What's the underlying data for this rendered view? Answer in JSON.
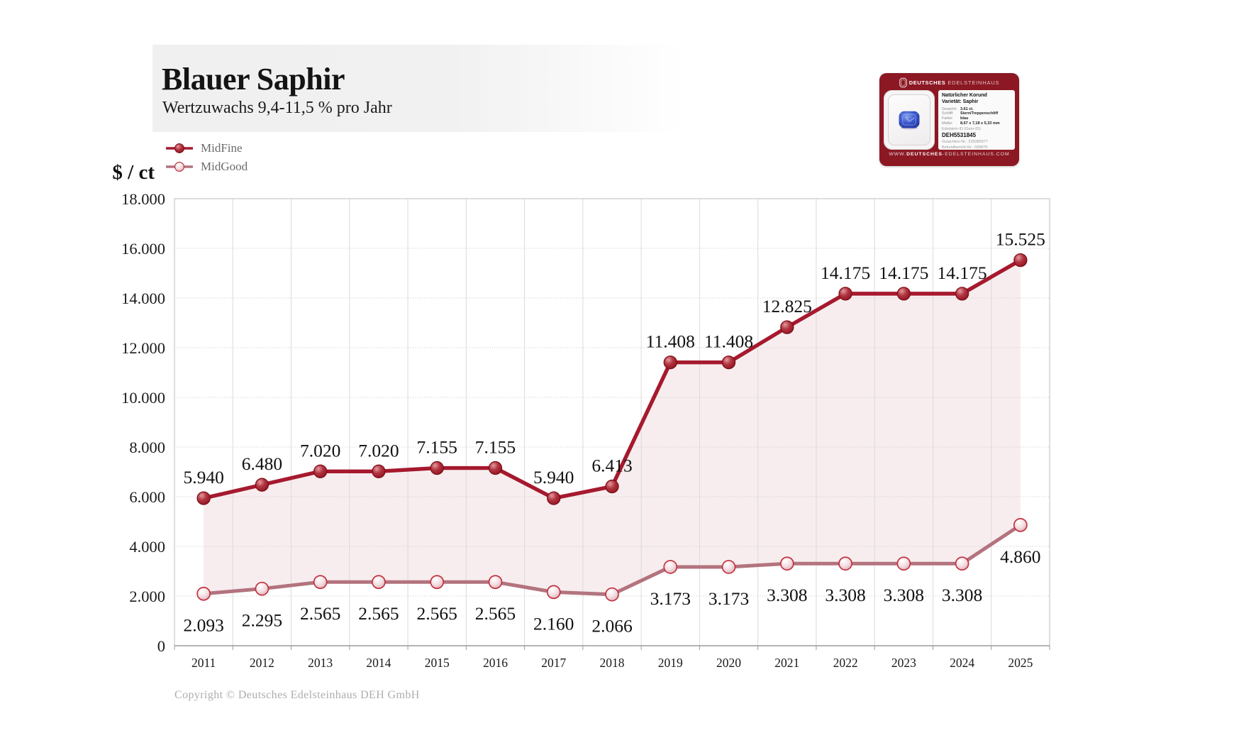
{
  "header": {
    "title": "Blauer Saphir",
    "subtitle": "Wertzuwachs 9,4-11,5 % pro Jahr"
  },
  "y_axis_unit": "$ / ct",
  "copyright": "Copyright © Deutsches Edelsteinhaus DEH GmbH",
  "product_card": {
    "brand_bold": "DEUTSCHES",
    "brand_light": "EDELSTEINHAUS",
    "label": {
      "title1": "Natürlicher Korund",
      "title2": "Varietät: Saphir",
      "rows": [
        [
          "Gewicht:",
          "3.61 ct."
        ],
        [
          "Schliff:",
          "Stern/Treppenschliff"
        ],
        [
          "Farbe:",
          "blau"
        ],
        [
          "Maße:",
          "8,67 x 7,18 x 5,33 mm"
        ]
      ],
      "gem_id_caption": "Edelstein-ID (Gem-ID):",
      "gem_id": "DEH5531845",
      "cert1": "Gutachten-Nr.: 225085977",
      "cert2": "Befundbericht-Nr.: 039879"
    },
    "website_prefix": "WWW.",
    "website_bold": "DEUTSCHES",
    "website_rest": "-EDELSTEINHAUS.COM"
  },
  "chart_data": {
    "type": "line",
    "title": "Blauer Saphir",
    "subtitle": "Wertzuwachs 9,4-11,5 % pro Jahr",
    "ylabel": "$ / ct",
    "categories": [
      "2011",
      "2012",
      "2013",
      "2014",
      "2015",
      "2016",
      "2017",
      "2018",
      "2019",
      "2020",
      "2021",
      "2022",
      "2023",
      "2024",
      "2025"
    ],
    "series": [
      {
        "name": "MidFine",
        "color": "#A6192E",
        "marker": "red-gradient-filled-circle",
        "values": [
          5940,
          6480,
          7020,
          7020,
          7155,
          7155,
          5940,
          6413,
          11408,
          11408,
          12825,
          14175,
          14175,
          14175,
          15525
        ]
      },
      {
        "name": "MidGood",
        "color": "#B3737F",
        "marker": "white-circle-red-ring",
        "values": [
          2093,
          2295,
          2565,
          2565,
          2565,
          2565,
          2160,
          2066,
          3173,
          3173,
          3308,
          3308,
          3308,
          3308,
          4860
        ]
      }
    ],
    "ylim": [
      0,
      18000
    ],
    "ytick_step": 2000,
    "grid": true,
    "area_fill_between_series": true,
    "area_fill_color": "#F7EDEE",
    "legend_position": "top-left",
    "value_label_format": "thousands-dot"
  }
}
